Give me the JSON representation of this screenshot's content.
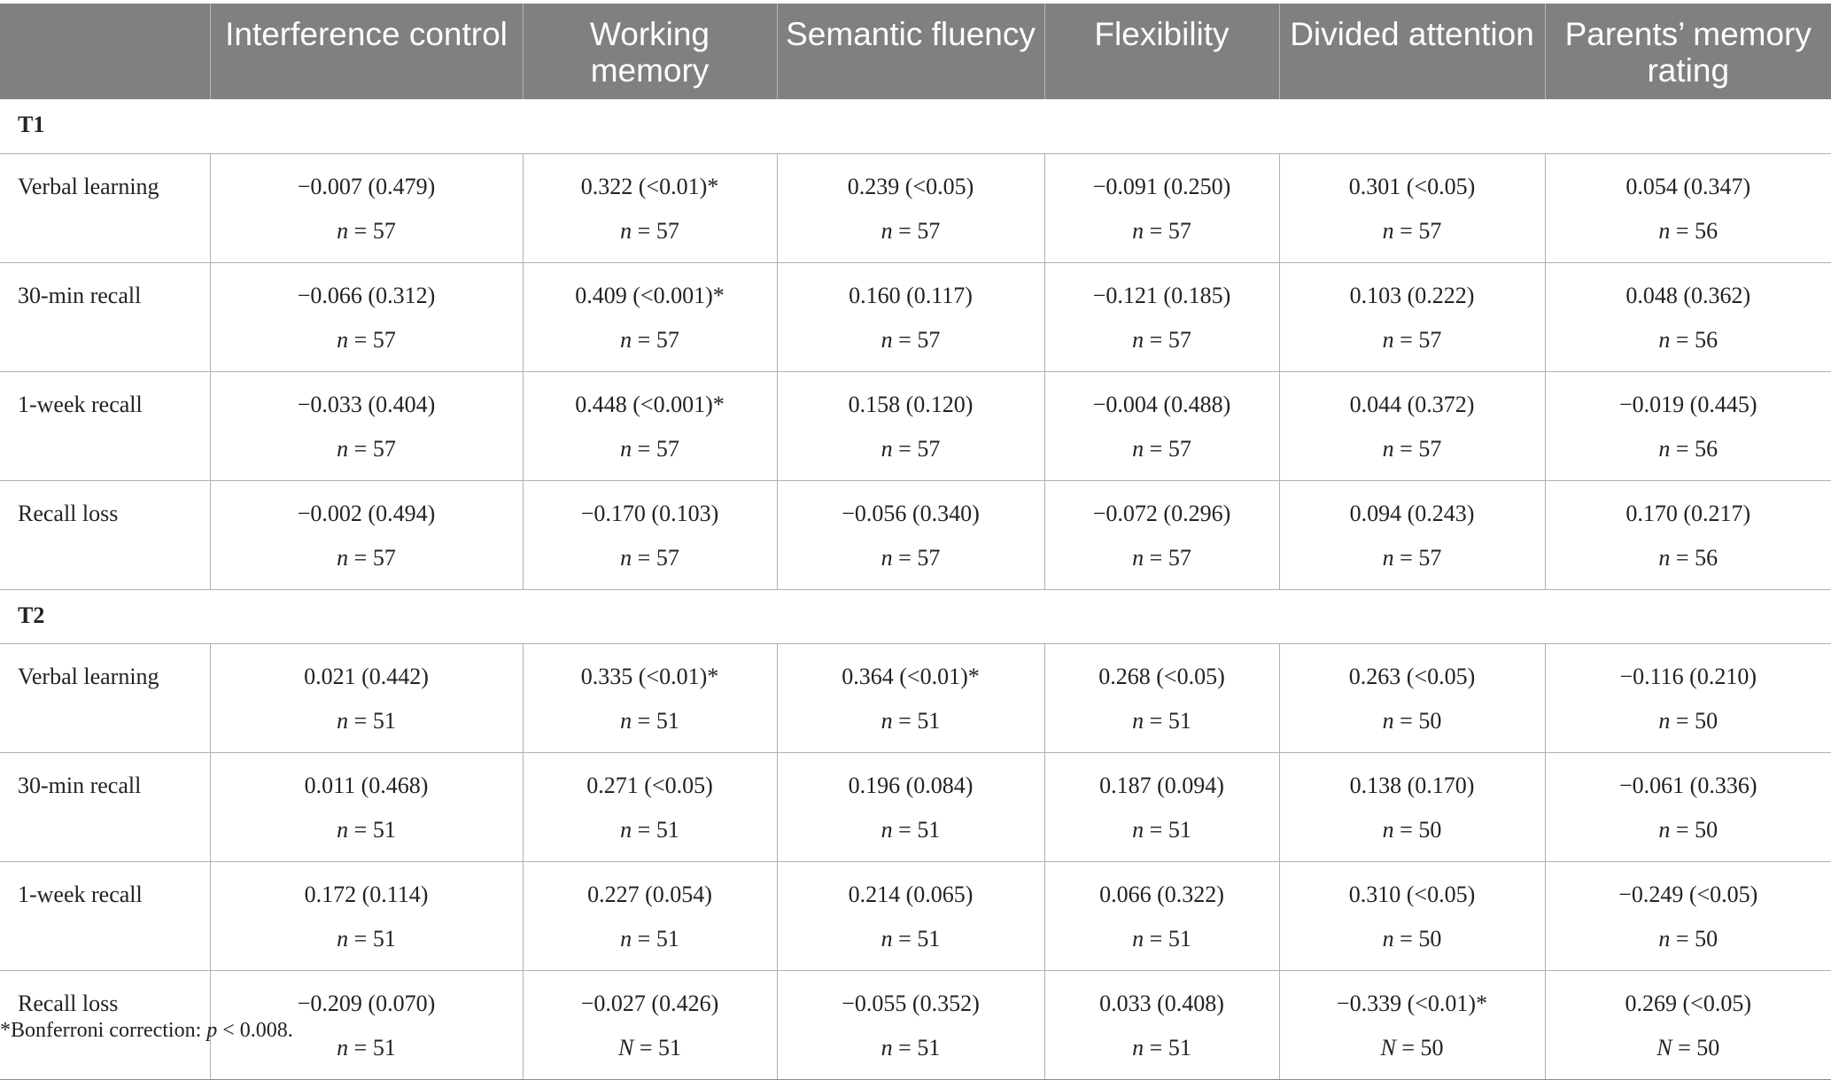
{
  "header": [
    "",
    "Interference control",
    "Working memory",
    "Semantic fluency",
    "Flexibility",
    "Divided attention",
    "Parents’ memory rating"
  ],
  "sections": [
    {
      "label": "T1",
      "rows": [
        {
          "name": "Verbal learning",
          "cells": [
            {
              "value": "−0.007 (0.479)",
              "nvar": "n",
              "n": "57"
            },
            {
              "value": "0.322 (<0.01)*",
              "nvar": "n",
              "n": "57"
            },
            {
              "value": "0.239 (<0.05)",
              "nvar": "n",
              "n": "57"
            },
            {
              "value": "−0.091 (0.250)",
              "nvar": "n",
              "n": "57"
            },
            {
              "value": "0.301 (<0.05)",
              "nvar": "n",
              "n": "57"
            },
            {
              "value": "0.054 (0.347)",
              "nvar": "n",
              "n": "56"
            }
          ]
        },
        {
          "name": "30-min recall",
          "cells": [
            {
              "value": "−0.066 (0.312)",
              "nvar": "n",
              "n": "57"
            },
            {
              "value": "0.409 (<0.001)*",
              "nvar": "n",
              "n": "57"
            },
            {
              "value": "0.160 (0.117)",
              "nvar": "n",
              "n": "57"
            },
            {
              "value": "−0.121 (0.185)",
              "nvar": "n",
              "n": "57"
            },
            {
              "value": "0.103 (0.222)",
              "nvar": "n",
              "n": "57"
            },
            {
              "value": "0.048 (0.362)",
              "nvar": "n",
              "n": "56"
            }
          ]
        },
        {
          "name": "1-week recall",
          "cells": [
            {
              "value": "−0.033 (0.404)",
              "nvar": "n",
              "n": "57"
            },
            {
              "value": "0.448 (<0.001)*",
              "nvar": "n",
              "n": "57"
            },
            {
              "value": "0.158 (0.120)",
              "nvar": "n",
              "n": "57"
            },
            {
              "value": "−0.004 (0.488)",
              "nvar": "n",
              "n": "57"
            },
            {
              "value": "0.044 (0.372)",
              "nvar": "n",
              "n": "57"
            },
            {
              "value": "−0.019 (0.445)",
              "nvar": "n",
              "n": "56"
            }
          ]
        },
        {
          "name": "Recall loss",
          "cells": [
            {
              "value": "−0.002 (0.494)",
              "nvar": "n",
              "n": "57"
            },
            {
              "value": "−0.170 (0.103)",
              "nvar": "n",
              "n": "57"
            },
            {
              "value": "−0.056 (0.340)",
              "nvar": "n",
              "n": "57"
            },
            {
              "value": "−0.072 (0.296)",
              "nvar": "n",
              "n": "57"
            },
            {
              "value": "0.094 (0.243)",
              "nvar": "n",
              "n": "57"
            },
            {
              "value": "0.170 (0.217)",
              "nvar": "n",
              "n": "56"
            }
          ]
        }
      ]
    },
    {
      "label": "T2",
      "rows": [
        {
          "name": "Verbal learning",
          "cells": [
            {
              "value": "0.021 (0.442)",
              "nvar": "n",
              "n": "51"
            },
            {
              "value": "0.335 (<0.01)*",
              "nvar": "n",
              "n": "51"
            },
            {
              "value": "0.364 (<0.01)*",
              "nvar": "n",
              "n": "51"
            },
            {
              "value": "0.268 (<0.05)",
              "nvar": "n",
              "n": "51"
            },
            {
              "value": "0.263 (<0.05)",
              "nvar": "n",
              "n": "50"
            },
            {
              "value": "−0.116 (0.210)",
              "nvar": "n",
              "n": "50"
            }
          ]
        },
        {
          "name": "30-min recall",
          "cells": [
            {
              "value": "0.011 (0.468)",
              "nvar": "n",
              "n": "51"
            },
            {
              "value": "0.271 (<0.05)",
              "nvar": "n",
              "n": "51"
            },
            {
              "value": "0.196 (0.084)",
              "nvar": "n",
              "n": "51"
            },
            {
              "value": "0.187 (0.094)",
              "nvar": "n",
              "n": "51"
            },
            {
              "value": "0.138 (0.170)",
              "nvar": "n",
              "n": "50"
            },
            {
              "value": "−0.061 (0.336)",
              "nvar": "n",
              "n": "50"
            }
          ]
        },
        {
          "name": "1-week recall",
          "cells": [
            {
              "value": "0.172 (0.114)",
              "nvar": "n",
              "n": "51"
            },
            {
              "value": "0.227 (0.054)",
              "nvar": "n",
              "n": "51"
            },
            {
              "value": "0.214 (0.065)",
              "nvar": "n",
              "n": "51"
            },
            {
              "value": "0.066 (0.322)",
              "nvar": "n",
              "n": "51"
            },
            {
              "value": "0.310 (<0.05)",
              "nvar": "n",
              "n": "50"
            },
            {
              "value": "−0.249 (<0.05)",
              "nvar": "n",
              "n": "50"
            }
          ]
        },
        {
          "name": "Recall loss",
          "cells": [
            {
              "value": "−0.209 (0.070)",
              "nvar": "n",
              "n": "51"
            },
            {
              "value": "−0.027 (0.426)",
              "nvar": "N",
              "n": "51"
            },
            {
              "value": "−0.055 (0.352)",
              "nvar": "n",
              "n": "51"
            },
            {
              "value": "0.033 (0.408)",
              "nvar": "n",
              "n": "51"
            },
            {
              "value": "−0.339 (<0.01)*",
              "nvar": "N",
              "n": "50"
            },
            {
              "value": "0.269 (<0.05)",
              "nvar": "N",
              "n": "50"
            }
          ]
        }
      ]
    }
  ],
  "footnote": {
    "prefix": "*Bonferroni correction: ",
    "var": "p",
    "rest": " < 0.008."
  }
}
